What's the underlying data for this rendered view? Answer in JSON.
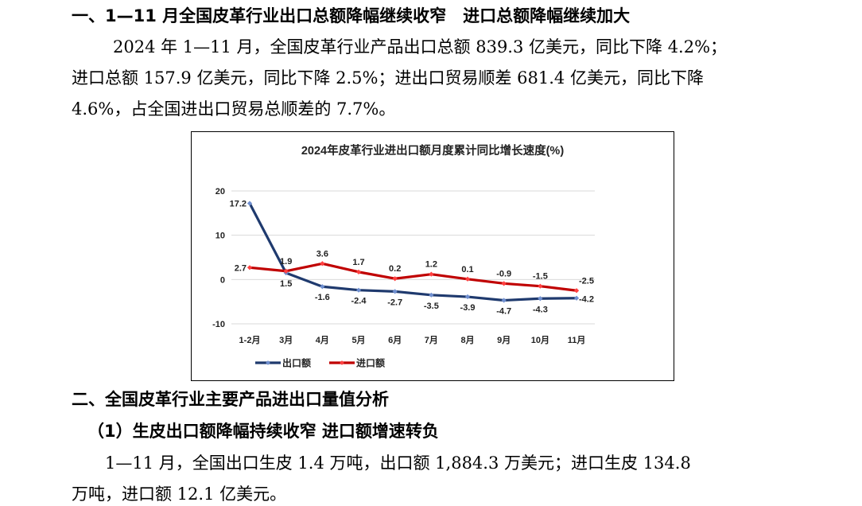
{
  "section1": {
    "heading": "一、1—11 月全国皮革行业出口总额降幅继续收窄　进口总额降幅继续加大",
    "para_lines": [
      "2024 年 1—11 月，全国皮革行业产品出口总额 839.3 亿美元，同比下降 4.2%；",
      "进口总额 157.9 亿美元，同比下降 2.5%；进出口贸易顺差 681.4 亿美元，同比下降",
      "4.6%，占全国进出口贸易总顺差的 7.7%。"
    ]
  },
  "chart_data": {
    "type": "line",
    "title": "2024年皮革行业进出口额月度累计同比增长速度(%)",
    "categories": [
      "1-2月",
      "3月",
      "4月",
      "5月",
      "6月",
      "7月",
      "8月",
      "9月",
      "10月",
      "11月"
    ],
    "series": [
      {
        "name": "出口额",
        "color": "#1f3a6e",
        "values": [
          17.2,
          1.5,
          -1.6,
          -2.4,
          -2.7,
          -3.5,
          -3.9,
          -4.7,
          -4.3,
          -4.2
        ]
      },
      {
        "name": "进口额",
        "color": "#c00000",
        "values": [
          2.7,
          1.9,
          3.6,
          1.7,
          0.2,
          1.2,
          0.1,
          -0.9,
          -1.5,
          -2.5
        ]
      }
    ],
    "ylim": [
      -10,
      20
    ],
    "yticks": [
      "20",
      "10",
      "0",
      "-10"
    ],
    "ytick_values": [
      20,
      10,
      0,
      -10
    ],
    "grid": true,
    "legend": "bottom",
    "xlabel": "",
    "ylabel": ""
  },
  "section2": {
    "heading": "二、全国皮革行业主要产品进出口量值分析",
    "subheading": "（1）生皮出口额降幅持续收窄 进口额增速转负",
    "para_lines": [
      "1—11 月，全国出口生皮 1.4 万吨，出口额 1,884.3 万美元；进口生皮 134.8",
      "万吨，进口额 12.1 亿美元。"
    ]
  }
}
